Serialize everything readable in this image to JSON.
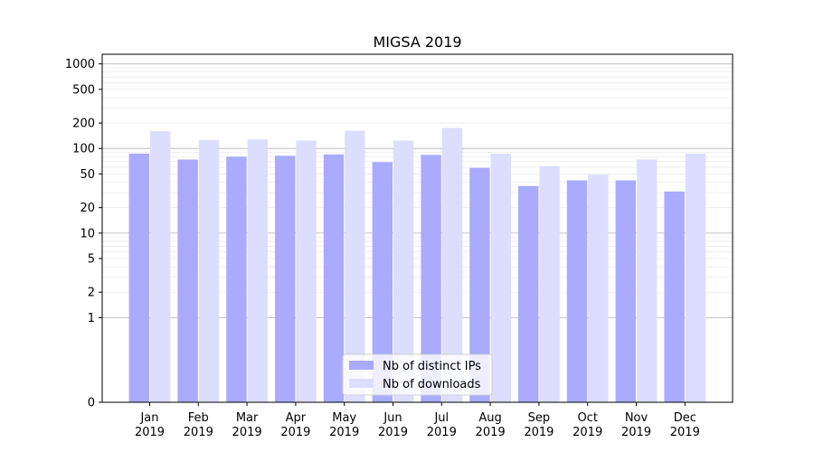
{
  "chart_data": {
    "type": "bar",
    "title": "MIGSA 2019",
    "xlabel": "",
    "ylabel": "",
    "y_scale": "symlog",
    "ylim": [
      0,
      1300
    ],
    "yticks": [
      0,
      1,
      2,
      5,
      10,
      20,
      50,
      100,
      200,
      500,
      1000
    ],
    "categories": [
      "Jan\n2019",
      "Feb\n2019",
      "Mar\n2019",
      "Apr\n2019",
      "May\n2019",
      "Jun\n2019",
      "Jul\n2019",
      "Aug\n2019",
      "Sep\n2019",
      "Oct\n2019",
      "Nov\n2019",
      "Dec\n2019"
    ],
    "series": [
      {
        "name": "Nb of distinct IPs",
        "color": "#aaaaff",
        "values": [
          87,
          74,
          80,
          82,
          85,
          69,
          84,
          59,
          36,
          42,
          42,
          31
        ]
      },
      {
        "name": "Nb of downloads",
        "color": "#ddddff",
        "values": [
          160,
          126,
          128,
          124,
          162,
          124,
          175,
          87,
          62,
          49,
          74,
          87
        ]
      }
    ],
    "grid": true,
    "legend_position": "lower-center"
  }
}
